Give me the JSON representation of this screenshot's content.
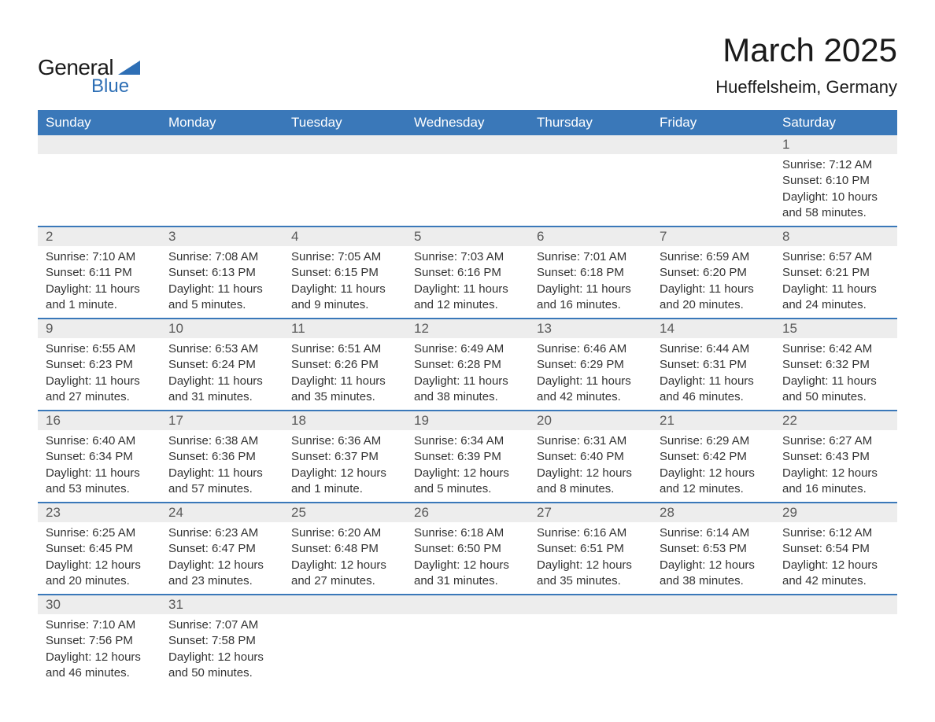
{
  "logo": {
    "word1": "General",
    "word2": "Blue",
    "accent_color": "#2e6fb5"
  },
  "title": "March 2025",
  "location": "Hueffelsheim, Germany",
  "colors": {
    "header_bg": "#3a78b9",
    "header_fg": "#ffffff",
    "daynum_bg": "#ededed",
    "daynum_fg": "#5a5a5a",
    "row_divider": "#3a78b9",
    "body_text": "#333333",
    "background": "#ffffff"
  },
  "typography": {
    "title_fontsize": 42,
    "location_fontsize": 22,
    "dow_fontsize": 17,
    "daynum_fontsize": 17,
    "cell_fontsize": 15
  },
  "days_of_week": [
    "Sunday",
    "Monday",
    "Tuesday",
    "Wednesday",
    "Thursday",
    "Friday",
    "Saturday"
  ],
  "weeks": [
    [
      null,
      null,
      null,
      null,
      null,
      null,
      {
        "n": "1",
        "sunrise": "Sunrise: 7:12 AM",
        "sunset": "Sunset: 6:10 PM",
        "daylight": "Daylight: 10 hours and 58 minutes."
      }
    ],
    [
      {
        "n": "2",
        "sunrise": "Sunrise: 7:10 AM",
        "sunset": "Sunset: 6:11 PM",
        "daylight": "Daylight: 11 hours and 1 minute."
      },
      {
        "n": "3",
        "sunrise": "Sunrise: 7:08 AM",
        "sunset": "Sunset: 6:13 PM",
        "daylight": "Daylight: 11 hours and 5 minutes."
      },
      {
        "n": "4",
        "sunrise": "Sunrise: 7:05 AM",
        "sunset": "Sunset: 6:15 PM",
        "daylight": "Daylight: 11 hours and 9 minutes."
      },
      {
        "n": "5",
        "sunrise": "Sunrise: 7:03 AM",
        "sunset": "Sunset: 6:16 PM",
        "daylight": "Daylight: 11 hours and 12 minutes."
      },
      {
        "n": "6",
        "sunrise": "Sunrise: 7:01 AM",
        "sunset": "Sunset: 6:18 PM",
        "daylight": "Daylight: 11 hours and 16 minutes."
      },
      {
        "n": "7",
        "sunrise": "Sunrise: 6:59 AM",
        "sunset": "Sunset: 6:20 PM",
        "daylight": "Daylight: 11 hours and 20 minutes."
      },
      {
        "n": "8",
        "sunrise": "Sunrise: 6:57 AM",
        "sunset": "Sunset: 6:21 PM",
        "daylight": "Daylight: 11 hours and 24 minutes."
      }
    ],
    [
      {
        "n": "9",
        "sunrise": "Sunrise: 6:55 AM",
        "sunset": "Sunset: 6:23 PM",
        "daylight": "Daylight: 11 hours and 27 minutes."
      },
      {
        "n": "10",
        "sunrise": "Sunrise: 6:53 AM",
        "sunset": "Sunset: 6:24 PM",
        "daylight": "Daylight: 11 hours and 31 minutes."
      },
      {
        "n": "11",
        "sunrise": "Sunrise: 6:51 AM",
        "sunset": "Sunset: 6:26 PM",
        "daylight": "Daylight: 11 hours and 35 minutes."
      },
      {
        "n": "12",
        "sunrise": "Sunrise: 6:49 AM",
        "sunset": "Sunset: 6:28 PM",
        "daylight": "Daylight: 11 hours and 38 minutes."
      },
      {
        "n": "13",
        "sunrise": "Sunrise: 6:46 AM",
        "sunset": "Sunset: 6:29 PM",
        "daylight": "Daylight: 11 hours and 42 minutes."
      },
      {
        "n": "14",
        "sunrise": "Sunrise: 6:44 AM",
        "sunset": "Sunset: 6:31 PM",
        "daylight": "Daylight: 11 hours and 46 minutes."
      },
      {
        "n": "15",
        "sunrise": "Sunrise: 6:42 AM",
        "sunset": "Sunset: 6:32 PM",
        "daylight": "Daylight: 11 hours and 50 minutes."
      }
    ],
    [
      {
        "n": "16",
        "sunrise": "Sunrise: 6:40 AM",
        "sunset": "Sunset: 6:34 PM",
        "daylight": "Daylight: 11 hours and 53 minutes."
      },
      {
        "n": "17",
        "sunrise": "Sunrise: 6:38 AM",
        "sunset": "Sunset: 6:36 PM",
        "daylight": "Daylight: 11 hours and 57 minutes."
      },
      {
        "n": "18",
        "sunrise": "Sunrise: 6:36 AM",
        "sunset": "Sunset: 6:37 PM",
        "daylight": "Daylight: 12 hours and 1 minute."
      },
      {
        "n": "19",
        "sunrise": "Sunrise: 6:34 AM",
        "sunset": "Sunset: 6:39 PM",
        "daylight": "Daylight: 12 hours and 5 minutes."
      },
      {
        "n": "20",
        "sunrise": "Sunrise: 6:31 AM",
        "sunset": "Sunset: 6:40 PM",
        "daylight": "Daylight: 12 hours and 8 minutes."
      },
      {
        "n": "21",
        "sunrise": "Sunrise: 6:29 AM",
        "sunset": "Sunset: 6:42 PM",
        "daylight": "Daylight: 12 hours and 12 minutes."
      },
      {
        "n": "22",
        "sunrise": "Sunrise: 6:27 AM",
        "sunset": "Sunset: 6:43 PM",
        "daylight": "Daylight: 12 hours and 16 minutes."
      }
    ],
    [
      {
        "n": "23",
        "sunrise": "Sunrise: 6:25 AM",
        "sunset": "Sunset: 6:45 PM",
        "daylight": "Daylight: 12 hours and 20 minutes."
      },
      {
        "n": "24",
        "sunrise": "Sunrise: 6:23 AM",
        "sunset": "Sunset: 6:47 PM",
        "daylight": "Daylight: 12 hours and 23 minutes."
      },
      {
        "n": "25",
        "sunrise": "Sunrise: 6:20 AM",
        "sunset": "Sunset: 6:48 PM",
        "daylight": "Daylight: 12 hours and 27 minutes."
      },
      {
        "n": "26",
        "sunrise": "Sunrise: 6:18 AM",
        "sunset": "Sunset: 6:50 PM",
        "daylight": "Daylight: 12 hours and 31 minutes."
      },
      {
        "n": "27",
        "sunrise": "Sunrise: 6:16 AM",
        "sunset": "Sunset: 6:51 PM",
        "daylight": "Daylight: 12 hours and 35 minutes."
      },
      {
        "n": "28",
        "sunrise": "Sunrise: 6:14 AM",
        "sunset": "Sunset: 6:53 PM",
        "daylight": "Daylight: 12 hours and 38 minutes."
      },
      {
        "n": "29",
        "sunrise": "Sunrise: 6:12 AM",
        "sunset": "Sunset: 6:54 PM",
        "daylight": "Daylight: 12 hours and 42 minutes."
      }
    ],
    [
      {
        "n": "30",
        "sunrise": "Sunrise: 7:10 AM",
        "sunset": "Sunset: 7:56 PM",
        "daylight": "Daylight: 12 hours and 46 minutes."
      },
      {
        "n": "31",
        "sunrise": "Sunrise: 7:07 AM",
        "sunset": "Sunset: 7:58 PM",
        "daylight": "Daylight: 12 hours and 50 minutes."
      },
      null,
      null,
      null,
      null,
      null
    ]
  ]
}
